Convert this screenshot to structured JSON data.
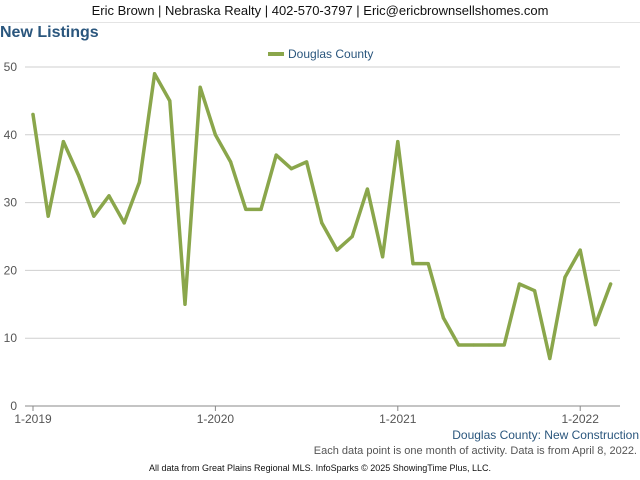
{
  "header": {
    "contact": "Eric Brown | Nebraska Realty | 402-570-3797 | Eric@ericbrownsellshomes.com"
  },
  "chart_data": {
    "type": "line",
    "title": "New Listings",
    "legend_position": "top-center",
    "grid": true,
    "x": [
      "2019-01",
      "2019-02",
      "2019-03",
      "2019-04",
      "2019-05",
      "2019-06",
      "2019-07",
      "2019-08",
      "2019-09",
      "2019-10",
      "2019-11",
      "2019-12",
      "2020-01",
      "2020-02",
      "2020-03",
      "2020-04",
      "2020-05",
      "2020-06",
      "2020-07",
      "2020-08",
      "2020-09",
      "2020-10",
      "2020-11",
      "2020-12",
      "2021-01",
      "2021-02",
      "2021-03",
      "2021-04",
      "2021-05",
      "2021-06",
      "2021-07",
      "2021-08",
      "2021-09",
      "2021-10",
      "2021-11",
      "2021-12",
      "2022-01",
      "2022-02",
      "2022-03"
    ],
    "series": [
      {
        "name": "Douglas County",
        "color": "#8aa64b",
        "values": [
          43,
          28,
          39,
          34,
          28,
          31,
          27,
          33,
          49,
          45,
          15,
          47,
          40,
          36,
          29,
          29,
          37,
          35,
          36,
          27,
          23,
          25,
          32,
          22,
          39,
          21,
          21,
          13,
          9,
          9,
          9,
          9,
          18,
          17,
          7,
          19,
          23,
          12,
          18
        ]
      }
    ],
    "ylim": [
      0,
      50
    ],
    "y_ticks": [
      "0",
      "10",
      "20",
      "30",
      "40",
      "50"
    ],
    "x_ticks": [
      {
        "label": "1-2019",
        "index": 0
      },
      {
        "label": "1-2020",
        "index": 12
      },
      {
        "label": "1-2021",
        "index": 24
      },
      {
        "label": "1-2022",
        "index": 36
      }
    ],
    "series_caption": "Douglas County: New Construction",
    "note": "Each data point is one month of activity. Data is from April 8, 2022."
  },
  "footer": {
    "text": "All data from Great Plains Regional MLS. InfoSparks © 2025 ShowingTime Plus, LLC."
  }
}
